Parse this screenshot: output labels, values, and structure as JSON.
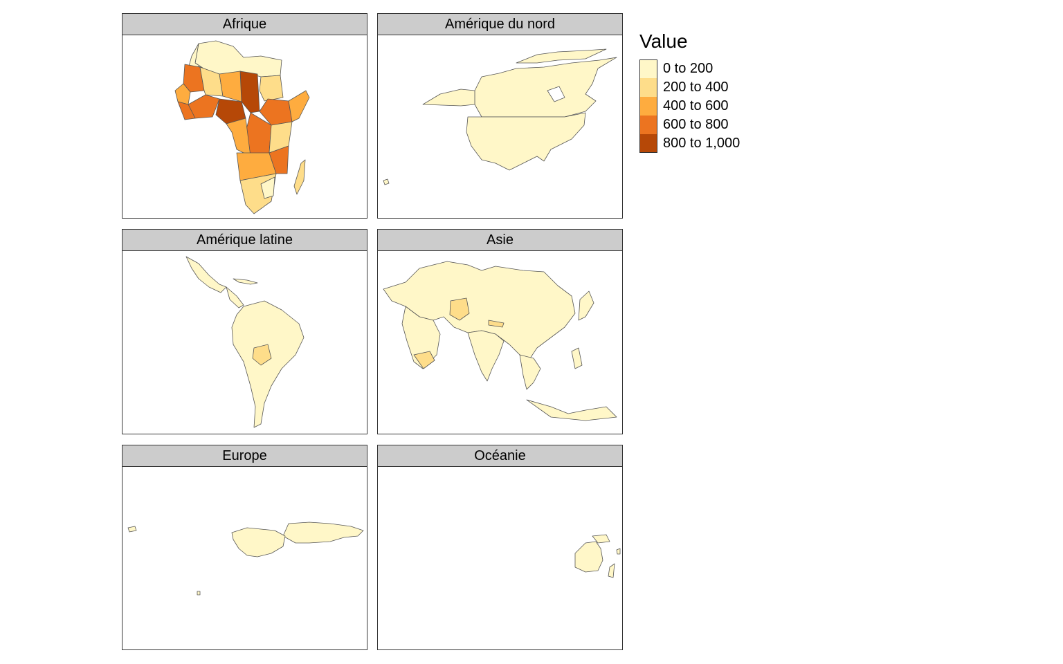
{
  "legend": {
    "title": "Value",
    "classes": [
      {
        "label": "0 to 200",
        "color": "#fff7c8"
      },
      {
        "label": "200 to 400",
        "color": "#fedd8a"
      },
      {
        "label": "400 to 600",
        "color": "#feac3f"
      },
      {
        "label": "600 to 800",
        "color": "#ec7420"
      },
      {
        "label": "800 to 1,000",
        "color": "#b64807"
      }
    ]
  },
  "panels": [
    {
      "key": "afrique",
      "title": "Afrique"
    },
    {
      "key": "amerique_nord",
      "title": "Amérique du nord"
    },
    {
      "key": "amerique_latine",
      "title": "Amérique latine"
    },
    {
      "key": "asie",
      "title": "Asie"
    },
    {
      "key": "europe",
      "title": "Europe"
    },
    {
      "key": "oceanie",
      "title": "Océanie"
    }
  ],
  "chart_data": {
    "type": "choropleth",
    "facet_by": "continent",
    "legend_title": "Value",
    "breaks": [
      0,
      200,
      400,
      600,
      800,
      1000
    ],
    "value_classes_shown": {
      "Afrique": [
        "0 to 200",
        "200 to 400",
        "400 to 600",
        "600 to 800",
        "800 to 1,000"
      ],
      "Amérique du nord": [
        "0 to 200"
      ],
      "Amérique latine": [
        "0 to 200",
        "200 to 400"
      ],
      "Asie": [
        "0 to 200",
        "200 to 400"
      ],
      "Europe": [
        "0 to 200"
      ],
      "Océanie": [
        "0 to 200"
      ]
    }
  }
}
